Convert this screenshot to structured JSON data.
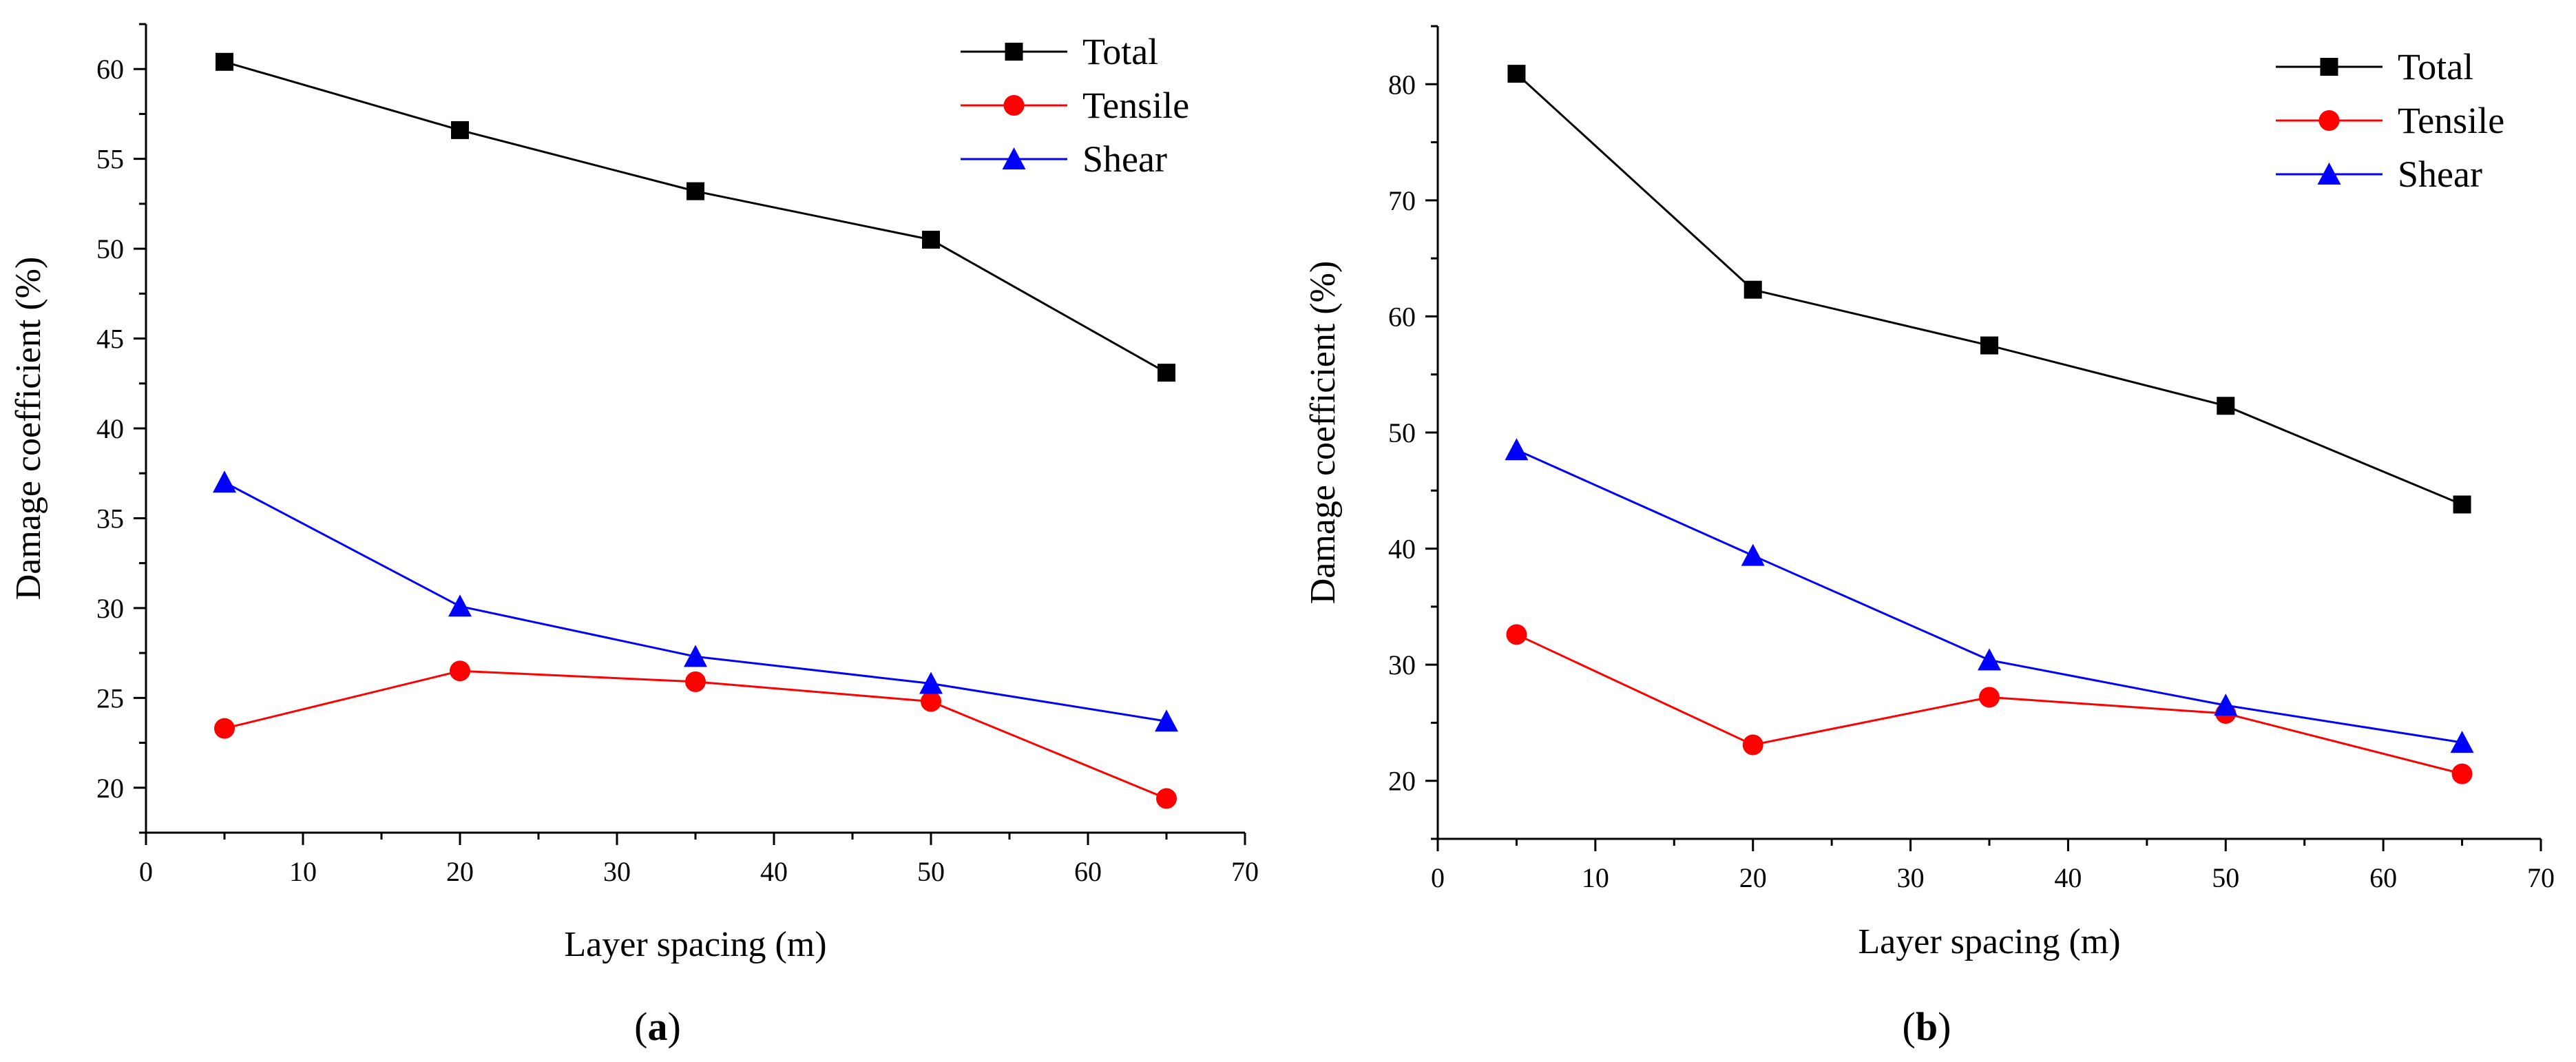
{
  "chart_data": [
    {
      "type": "line",
      "panel_label": "a",
      "xlabel": "Layer spacing (m)",
      "ylabel": "Damage coefficient (%)",
      "xlim": [
        0,
        70
      ],
      "ylim": [
        17.5,
        62.5
      ],
      "xticks": [
        0,
        10,
        20,
        30,
        40,
        50,
        60,
        70
      ],
      "xtick_labels": [
        "0",
        "10",
        "20",
        "30",
        "40",
        "50",
        "60",
        "70"
      ],
      "yticks": [
        20,
        25,
        30,
        35,
        40,
        45,
        50,
        55,
        60
      ],
      "ytick_labels": [
        "20",
        "25",
        "30",
        "35",
        "40",
        "45",
        "50",
        "55",
        "60"
      ],
      "x_minor_step": 5,
      "y_minor_step": 2.5,
      "grid": false,
      "legend_position": "top-right",
      "x": [
        5,
        20,
        35,
        50,
        65
      ],
      "series": [
        {
          "name": "Total",
          "color": "#000000",
          "marker": "square",
          "values": [
            60.4,
            56.6,
            53.2,
            50.5,
            43.1
          ]
        },
        {
          "name": "Tensile",
          "color": "#ff0000",
          "marker": "circle",
          "values": [
            23.3,
            26.5,
            25.9,
            24.8,
            19.4
          ]
        },
        {
          "name": "Shear",
          "color": "#0000ff",
          "marker": "triangle",
          "values": [
            37.0,
            30.1,
            27.3,
            25.8,
            23.7
          ]
        }
      ]
    },
    {
      "type": "line",
      "panel_label": "b",
      "xlabel": "Layer spacing (m)",
      "ylabel": "Damage coefficient (%)",
      "xlim": [
        0,
        70
      ],
      "ylim": [
        15,
        85
      ],
      "xticks": [
        0,
        10,
        20,
        30,
        40,
        50,
        60,
        70
      ],
      "xtick_labels": [
        "0",
        "10",
        "20",
        "30",
        "40",
        "50",
        "60",
        "70"
      ],
      "yticks": [
        20,
        30,
        40,
        50,
        60,
        70,
        80
      ],
      "ytick_labels": [
        "20",
        "30",
        "40",
        "50",
        "60",
        "70",
        "80"
      ],
      "x_minor_step": 5,
      "y_minor_step": 5,
      "grid": false,
      "legend_position": "top-right",
      "x": [
        5,
        20,
        35,
        50,
        65
      ],
      "series": [
        {
          "name": "Total",
          "color": "#000000",
          "marker": "square",
          "values": [
            80.9,
            62.3,
            57.5,
            52.3,
            43.8
          ]
        },
        {
          "name": "Tensile",
          "color": "#ff0000",
          "marker": "circle",
          "values": [
            32.6,
            23.1,
            27.2,
            25.8,
            20.6
          ]
        },
        {
          "name": "Shear",
          "color": "#0000ff",
          "marker": "triangle",
          "values": [
            48.5,
            39.4,
            30.4,
            26.5,
            23.3
          ]
        }
      ]
    }
  ]
}
